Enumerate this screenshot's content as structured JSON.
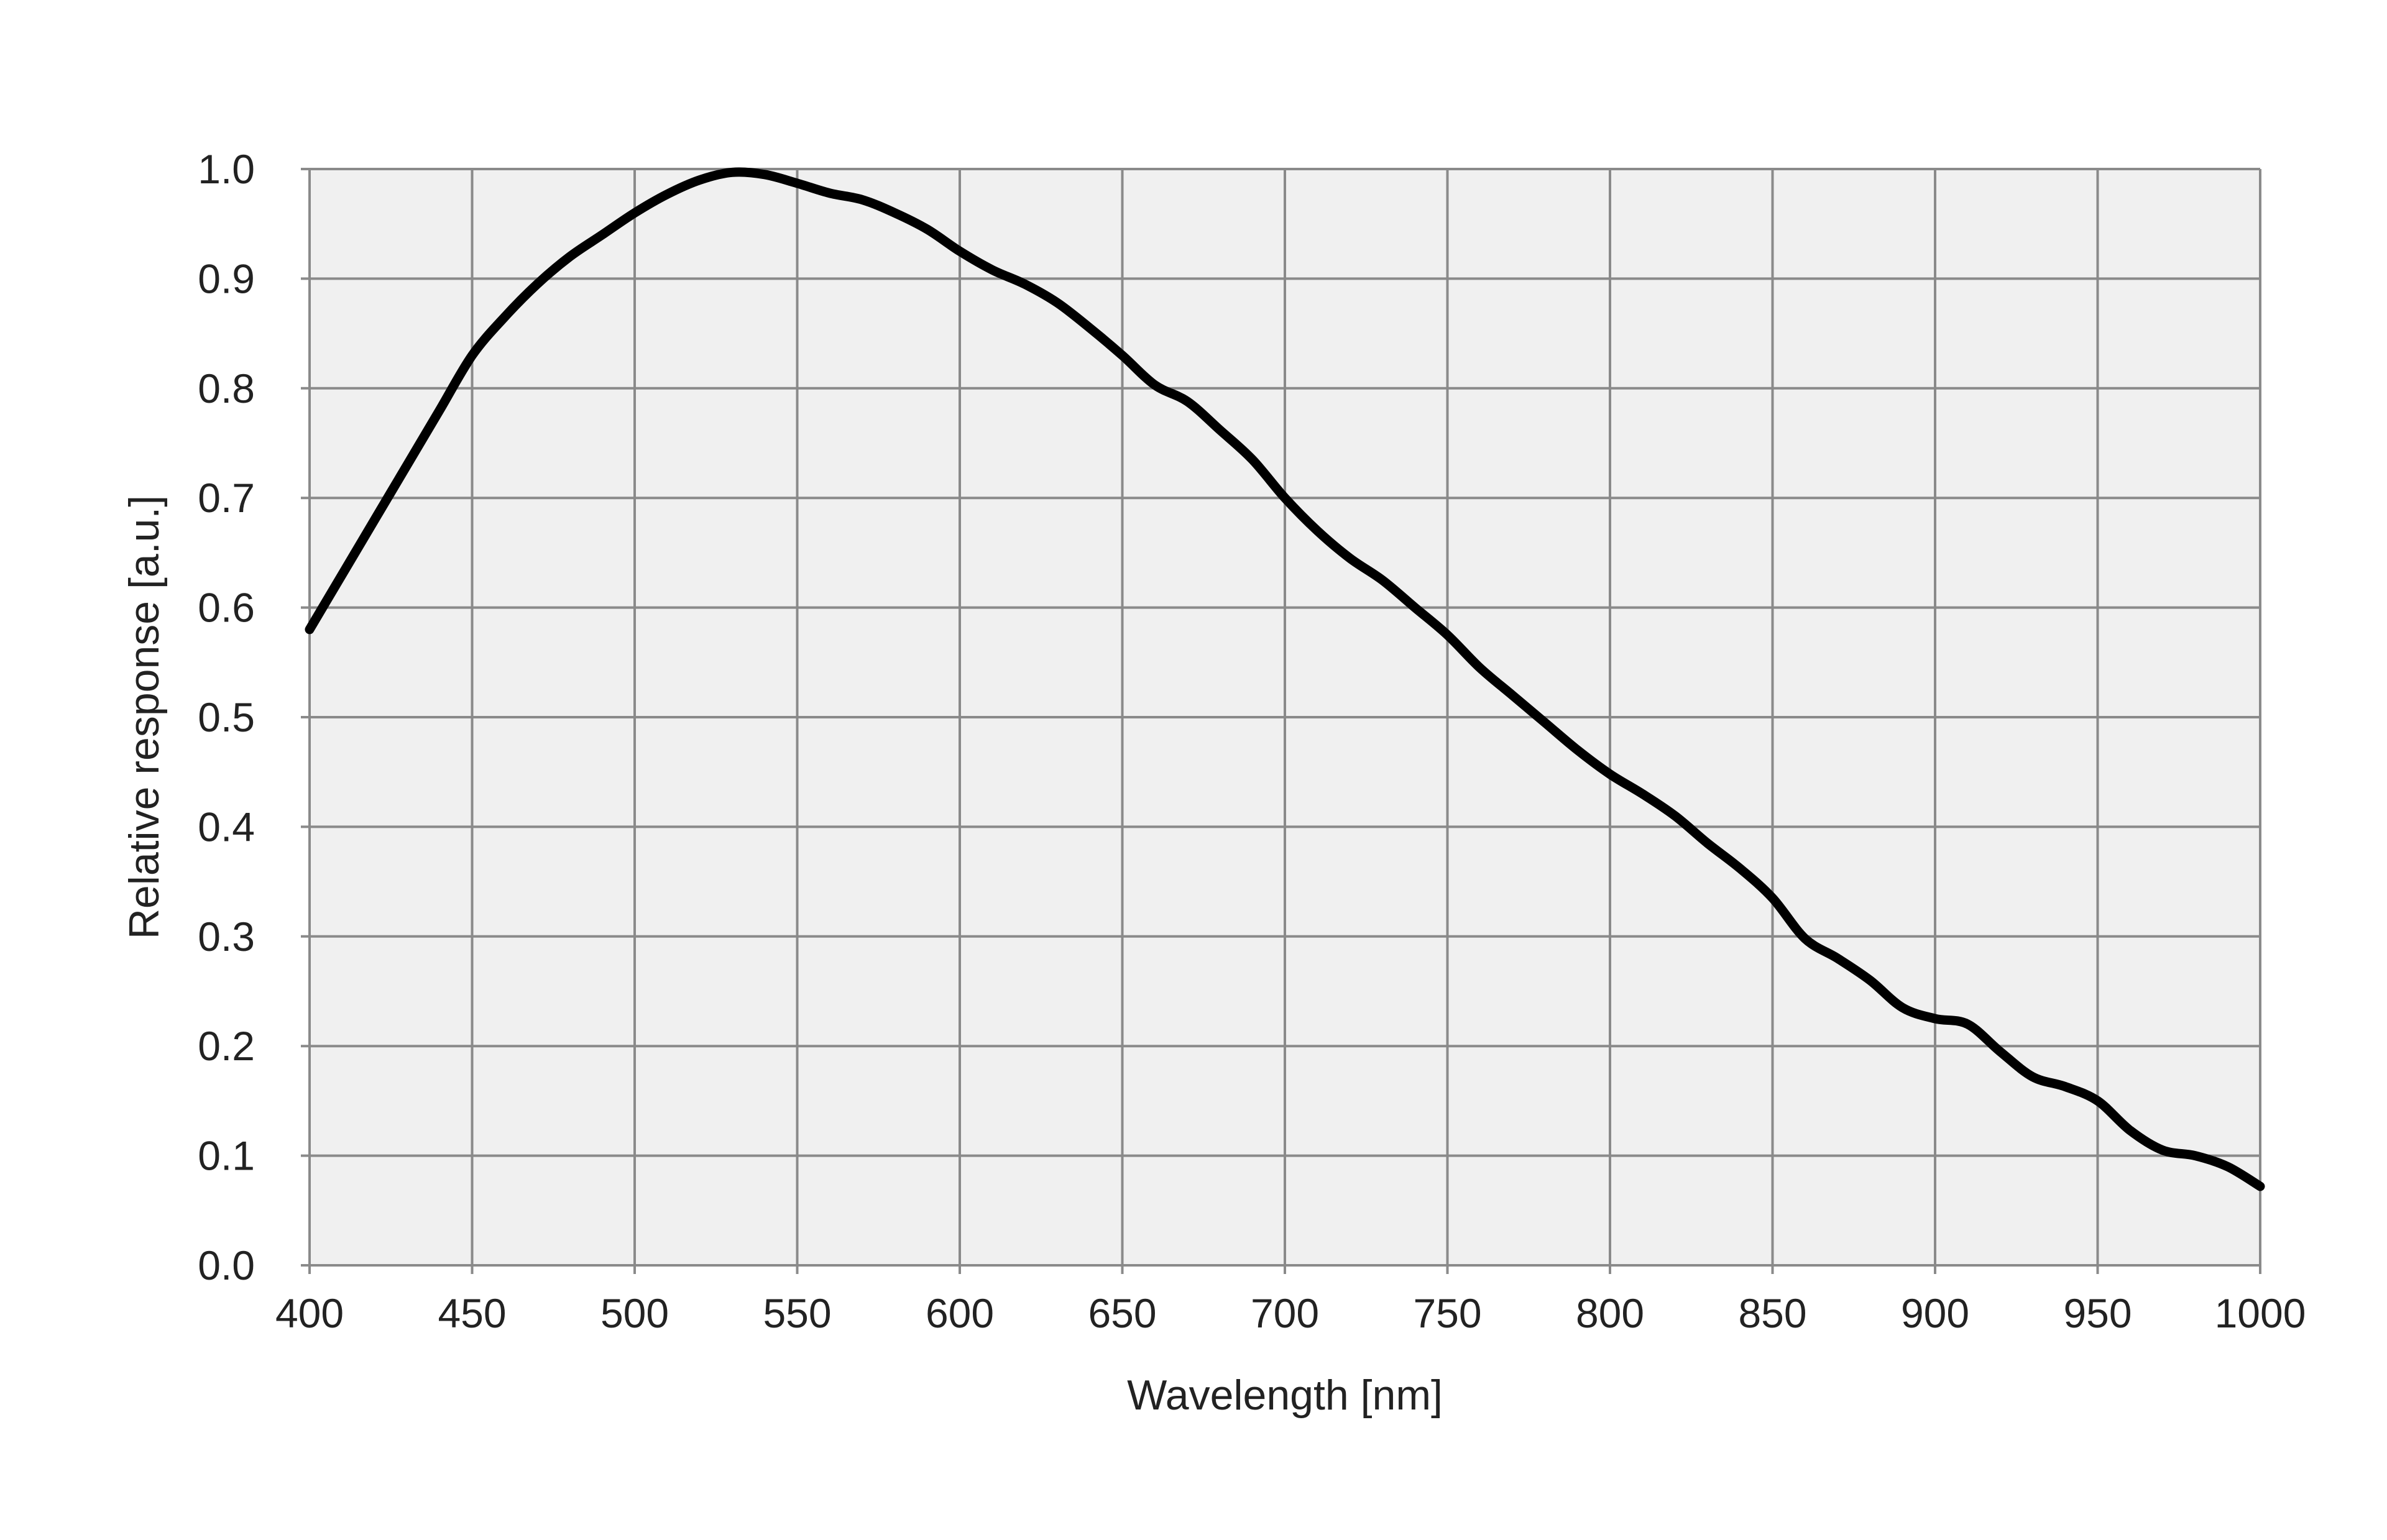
{
  "chart_data": {
    "type": "line",
    "title": "",
    "xlabel": "Wavelength  [nm]",
    "ylabel": "Relative  response [a.u.]",
    "xlim": [
      400,
      1000
    ],
    "ylim": [
      0.0,
      1.0
    ],
    "grid": true,
    "x_ticks": [
      "400",
      "450",
      "500",
      "550",
      "600",
      "650",
      "700",
      "750",
      "800",
      "850",
      "900",
      "950",
      "1000"
    ],
    "y_ticks": [
      "0.0",
      "0.1",
      "0.2",
      "0.3",
      "0.4",
      "0.5",
      "0.6",
      "0.7",
      "0.8",
      "0.9",
      "1.0"
    ],
    "series": [
      {
        "name": "Relative response",
        "color": "#000000",
        "x": [
          400,
          410,
          420,
          430,
          440,
          450,
          460,
          470,
          480,
          490,
          500,
          510,
          520,
          530,
          540,
          550,
          560,
          570,
          580,
          590,
          600,
          610,
          620,
          630,
          640,
          650,
          660,
          670,
          680,
          690,
          700,
          710,
          720,
          730,
          740,
          750,
          760,
          770,
          780,
          790,
          800,
          810,
          820,
          830,
          840,
          850,
          860,
          870,
          880,
          890,
          900,
          910,
          920,
          930,
          940,
          950,
          960,
          970,
          980,
          990,
          1000
        ],
        "y": [
          0.58,
          0.63,
          0.68,
          0.73,
          0.78,
          0.83,
          0.865,
          0.895,
          0.92,
          0.94,
          0.96,
          0.977,
          0.99,
          0.997,
          0.995,
          0.987,
          0.978,
          0.972,
          0.96,
          0.945,
          0.925,
          0.908,
          0.895,
          0.878,
          0.855,
          0.83,
          0.803,
          0.788,
          0.762,
          0.735,
          0.7,
          0.67,
          0.645,
          0.625,
          0.6,
          0.575,
          0.545,
          0.52,
          0.495,
          0.47,
          0.448,
          0.43,
          0.41,
          0.385,
          0.362,
          0.335,
          0.298,
          0.28,
          0.26,
          0.235,
          0.225,
          0.22,
          0.195,
          0.172,
          0.163,
          0.15,
          0.123,
          0.105,
          0.1,
          0.09,
          0.072
        ]
      }
    ]
  }
}
